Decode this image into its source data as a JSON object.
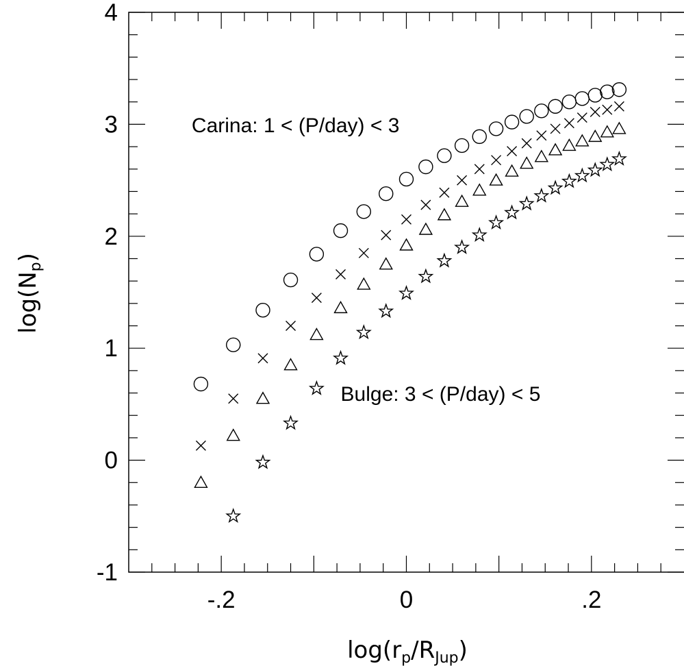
{
  "chart_data": {
    "type": "scatter",
    "xlabel": {
      "main": "log(r",
      "sub1": "p",
      "mid": "/R",
      "sub2": "Jup",
      "end": ")"
    },
    "ylabel": {
      "main": "log(N",
      "sub": "p",
      "end": ")"
    },
    "xlim": [
      -0.3,
      0.3
    ],
    "ylim": [
      -1,
      4
    ],
    "x_ticks": [
      {
        "value": -0.2,
        "label": "-.2"
      },
      {
        "value": 0,
        "label": "0"
      },
      {
        "value": 0.2,
        "label": ".2"
      }
    ],
    "y_ticks": [
      {
        "value": -1,
        "label": "-1"
      },
      {
        "value": 0,
        "label": "0"
      },
      {
        "value": 1,
        "label": "1"
      },
      {
        "value": 2,
        "label": "2"
      },
      {
        "value": 3,
        "label": "3"
      },
      {
        "value": 4,
        "label": "4"
      }
    ],
    "annotations": [
      {
        "text": "Carina: 1 < (P/day) < 3",
        "x": -0.232,
        "y": 2.93
      },
      {
        "text": "Bulge: 3 < (P/day) < 5",
        "x": -0.071,
        "y": 0.53
      }
    ],
    "series": [
      {
        "marker": "circle",
        "x": [
          -0.222,
          -0.187,
          -0.155,
          -0.125,
          -0.097,
          -0.071,
          -0.046,
          -0.022,
          0.0,
          0.021,
          0.041,
          0.06,
          0.079,
          0.097,
          0.114,
          0.13,
          0.146,
          0.161,
          0.176,
          0.19,
          0.204,
          0.217,
          0.23
        ],
        "y": [
          0.68,
          1.03,
          1.34,
          1.61,
          1.84,
          2.05,
          2.22,
          2.38,
          2.51,
          2.62,
          2.72,
          2.81,
          2.89,
          2.96,
          3.02,
          3.07,
          3.12,
          3.16,
          3.2,
          3.23,
          3.26,
          3.29,
          3.31
        ]
      },
      {
        "marker": "cross",
        "x": [
          -0.222,
          -0.187,
          -0.155,
          -0.125,
          -0.097,
          -0.071,
          -0.046,
          -0.022,
          0.0,
          0.021,
          0.041,
          0.06,
          0.079,
          0.097,
          0.114,
          0.13,
          0.146,
          0.161,
          0.176,
          0.19,
          0.204,
          0.217,
          0.23
        ],
        "y": [
          0.13,
          0.55,
          0.91,
          1.2,
          1.45,
          1.66,
          1.85,
          2.01,
          2.15,
          2.28,
          2.39,
          2.5,
          2.6,
          2.68,
          2.76,
          2.83,
          2.9,
          2.96,
          3.01,
          3.06,
          3.11,
          3.13,
          3.16
        ]
      },
      {
        "marker": "triangle",
        "x": [
          -0.222,
          -0.187,
          -0.155,
          -0.125,
          -0.097,
          -0.071,
          -0.046,
          -0.022,
          0.0,
          0.021,
          0.041,
          0.06,
          0.079,
          0.097,
          0.114,
          0.13,
          0.146,
          0.161,
          0.176,
          0.19,
          0.204,
          0.217,
          0.23
        ],
        "y": [
          -0.2,
          0.22,
          0.55,
          0.85,
          1.12,
          1.36,
          1.57,
          1.75,
          1.92,
          2.06,
          2.19,
          2.31,
          2.41,
          2.5,
          2.58,
          2.65,
          2.71,
          2.77,
          2.81,
          2.85,
          2.89,
          2.93,
          2.96
        ]
      },
      {
        "marker": "star",
        "x": [
          -0.187,
          -0.155,
          -0.125,
          -0.097,
          -0.071,
          -0.046,
          -0.022,
          0.0,
          0.021,
          0.041,
          0.06,
          0.079,
          0.097,
          0.114,
          0.13,
          0.146,
          0.161,
          0.176,
          0.19,
          0.204,
          0.217,
          0.23
        ],
        "y": [
          -0.5,
          -0.02,
          0.33,
          0.64,
          0.91,
          1.14,
          1.33,
          1.49,
          1.64,
          1.78,
          1.9,
          2.01,
          2.12,
          2.21,
          2.29,
          2.36,
          2.43,
          2.49,
          2.54,
          2.59,
          2.64,
          2.69
        ]
      }
    ]
  }
}
